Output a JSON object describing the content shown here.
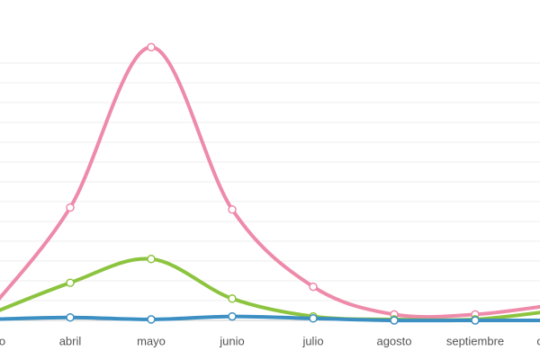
{
  "chart_data": {
    "type": "line",
    "categories": [
      "marzo",
      "abril",
      "mayo",
      "junio",
      "julio",
      "agosto",
      "septiembre",
      "octubre"
    ],
    "series": [
      {
        "name": "",
        "color": "#ee8aaa",
        "values": [
          0.5,
          5.7,
          13.8,
          5.6,
          1.7,
          0.3,
          0.3,
          0.8
        ]
      },
      {
        "name": "",
        "color": "#8cc43f",
        "values": [
          0.3,
          1.9,
          3.1,
          1.1,
          0.2,
          0.05,
          0.05,
          0.5
        ]
      },
      {
        "name": "",
        "color": "#3b8fc2",
        "values": [
          0.05,
          0.15,
          0.05,
          0.2,
          0.1,
          0,
          0,
          0
        ]
      }
    ],
    "ylim": [
      0,
      14
    ],
    "yticks": [
      0,
      1,
      2,
      3,
      4,
      5,
      6,
      7,
      8,
      9,
      10,
      11,
      12,
      13
    ],
    "grid": true
  }
}
